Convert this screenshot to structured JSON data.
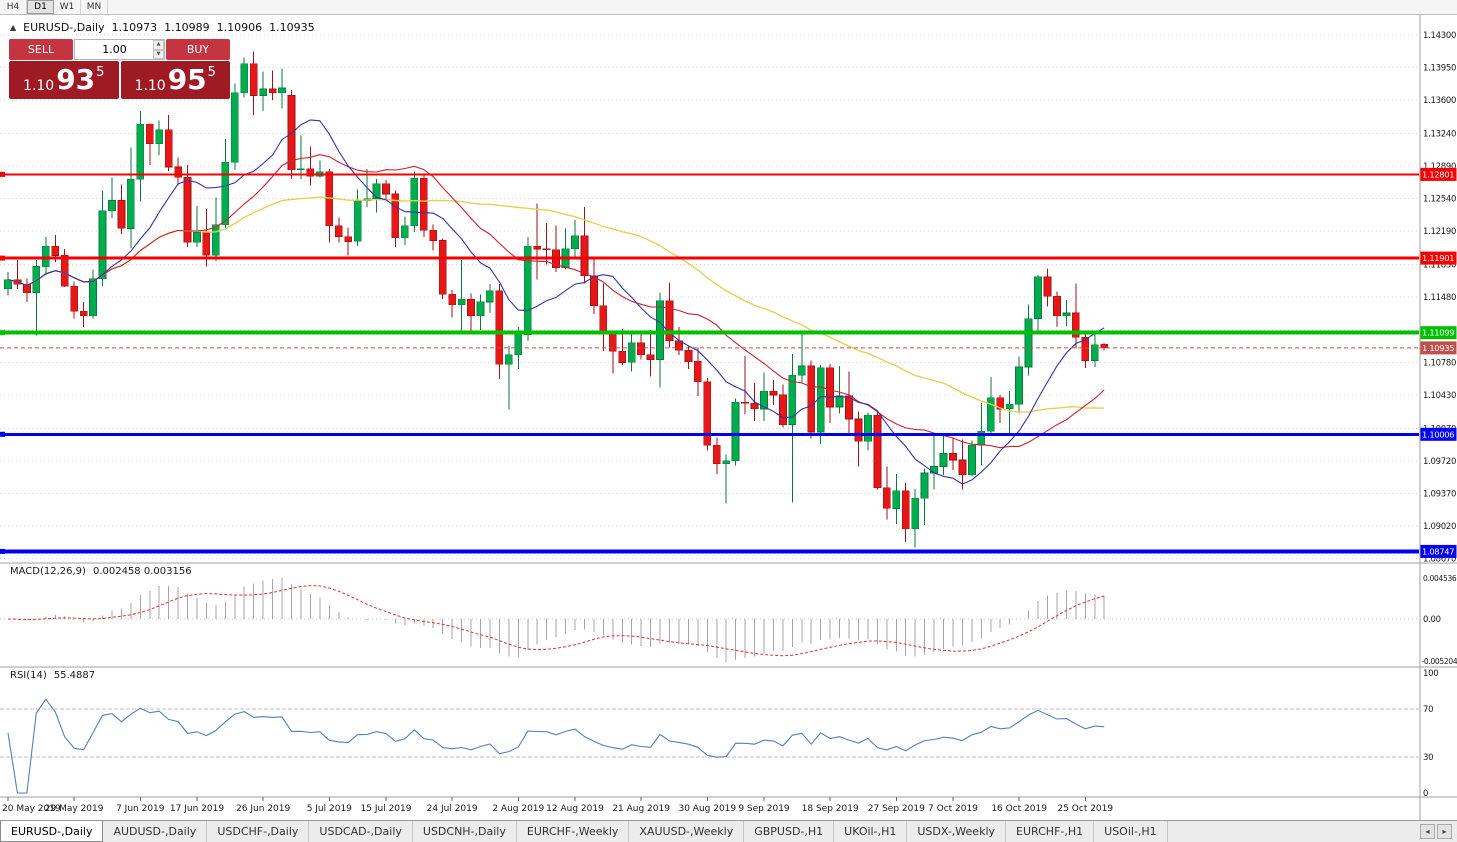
{
  "window": {
    "timeframes": [
      {
        "label": "H4",
        "active": false
      },
      {
        "label": "D1",
        "active": true
      },
      {
        "label": "W1",
        "active": false
      },
      {
        "label": "MN",
        "active": false
      }
    ]
  },
  "chart_header": {
    "collapse_marker": "▲",
    "symbol_title": "EURUSD-,Daily",
    "open": "1.10973",
    "high": "1.10989",
    "low": "1.10906",
    "close": "1.10935"
  },
  "trade_widget": {
    "sell_label": "SELL",
    "buy_label": "BUY",
    "volume": "1.00",
    "sell_price": {
      "prefix": "1.10",
      "pips": "93",
      "point": "5"
    },
    "buy_price": {
      "prefix": "1.10",
      "pips": "95",
      "point": "5"
    },
    "button_color": "#c53441",
    "panel_color": "#9e1b24"
  },
  "price_scale": {
    "ticks": [
      "1.14300",
      "1.13950",
      "1.13600",
      "1.13240",
      "1.12890",
      "1.12540",
      "1.12190",
      "1.11830",
      "1.11480",
      "1.11130",
      "1.10780",
      "1.10430",
      "1.10070",
      "1.09720",
      "1.09370",
      "1.09020",
      "1.08670"
    ]
  },
  "hlines": [
    {
      "price": 1.12801,
      "label": "1.12801",
      "color": "#f40000",
      "width": 2
    },
    {
      "price": 1.11901,
      "label": "1.11901",
      "color": "#f40000",
      "width": 3
    },
    {
      "price": 1.11099,
      "label": "1.11099",
      "color": "#00c000",
      "width": 4
    },
    {
      "price": 1.10006,
      "label": "1.10006",
      "color": "#0000f0",
      "width": 3
    },
    {
      "price": 1.08747,
      "label": "1.08747",
      "color": "#0000f0",
      "width": 4
    }
  ],
  "current_price": {
    "value": 1.10935,
    "label": "1.10935",
    "color": "#c0504d"
  },
  "macd_panel": {
    "label": "MACD(12,26,9)",
    "values": "0.002458 0.003156",
    "scale_top": "0.004536",
    "scale_mid": "0.00",
    "scale_bottom": "-0.005204",
    "histogram_color": "#a6a6a6",
    "signal_color": "#e03030"
  },
  "rsi_panel": {
    "label": "RSI(14)",
    "value": "55.4887",
    "scale": [
      "100",
      "70",
      "30",
      "0"
    ],
    "upper_level": 70,
    "lower_level": 30,
    "line_color": "#4f81bd",
    "level_color": "#c0c0c0"
  },
  "date_axis": {
    "labels": [
      {
        "text": "20 May 2019",
        "index": 0
      },
      {
        "text": "29 May 2019",
        "index": 7
      },
      {
        "text": "7 Jun 2019",
        "index": 14
      },
      {
        "text": "17 Jun 2019",
        "index": 20
      },
      {
        "text": "26 Jun 2019",
        "index": 27
      },
      {
        "text": "5 Jul 2019",
        "index": 34
      },
      {
        "text": "15 Jul 2019",
        "index": 40
      },
      {
        "text": "24 Jul 2019",
        "index": 47
      },
      {
        "text": "2 Aug 2019",
        "index": 54
      },
      {
        "text": "12 Aug 2019",
        "index": 60
      },
      {
        "text": "21 Aug 2019",
        "index": 67
      },
      {
        "text": "30 Aug 2019",
        "index": 74
      },
      {
        "text": "9 Sep 2019",
        "index": 80
      },
      {
        "text": "18 Sep 2019",
        "index": 87
      },
      {
        "text": "27 Sep 2019",
        "index": 94
      },
      {
        "text": "7 Oct 2019",
        "index": 100
      },
      {
        "text": "16 Oct 2019",
        "index": 107
      },
      {
        "text": "25 Oct 2019",
        "index": 114
      }
    ]
  },
  "tabs": {
    "items": [
      {
        "label": "EURUSD-,Daily",
        "active": true
      },
      {
        "label": "AUDUSD-,Daily",
        "active": false
      },
      {
        "label": "USDCHF-,Daily",
        "active": false
      },
      {
        "label": "USDCAD-,Daily",
        "active": false
      },
      {
        "label": "USDCNH-,Daily",
        "active": false
      },
      {
        "label": "EURCHF-,Weekly",
        "active": false
      },
      {
        "label": "XAUUSD-,Weekly",
        "active": false
      },
      {
        "label": "GBPUSD-,H1",
        "active": false
      },
      {
        "label": "UKOil-,H1",
        "active": false
      },
      {
        "label": "USDX-,Weekly",
        "active": false
      },
      {
        "label": "EURCHF-,H1",
        "active": false
      },
      {
        "label": "USOil-,H1",
        "active": false
      }
    ],
    "scroll_left": "◂",
    "scroll_right": "▸"
  },
  "chart_data": {
    "type": "candlestick",
    "symbol": "EURUSD",
    "timeframe": "Daily",
    "bull_color": "#00ad4e",
    "bear_color": "#e81717",
    "bull_dark": "#0a7a3c",
    "bear_dark": "#a01218",
    "ma_fast_color": "#3333aa",
    "ma_mid_color": "#cc2233",
    "ma_slow_color": "#e8cf52",
    "price_range": {
      "top": 1.14515,
      "bottom": 1.08622
    },
    "candles": [
      [
        "05.20",
        1.1157,
        1.1175,
        1.115,
        1.1167
      ],
      [
        "05.21",
        1.1167,
        1.1188,
        1.1157,
        1.1162
      ],
      [
        "05.22",
        1.1162,
        1.1168,
        1.1143,
        1.1153
      ],
      [
        "05.23",
        1.1153,
        1.1188,
        1.1107,
        1.1181
      ],
      [
        "05.24",
        1.1181,
        1.1213,
        1.1172,
        1.1203
      ],
      [
        "05.27",
        1.1203,
        1.1215,
        1.1186,
        1.1193
      ],
      [
        "05.28",
        1.1193,
        1.12,
        1.1159,
        1.116
      ],
      [
        "05.29",
        1.116,
        1.1165,
        1.1125,
        1.1133
      ],
      [
        "05.30",
        1.1133,
        1.1143,
        1.1116,
        1.1128
      ],
      [
        "05.31",
        1.1128,
        1.1178,
        1.1125,
        1.1168
      ],
      [
        "06.03",
        1.1168,
        1.1263,
        1.116,
        1.1241
      ],
      [
        "06.04",
        1.1241,
        1.1277,
        1.1233,
        1.1252
      ],
      [
        "06.05",
        1.1252,
        1.1269,
        1.1216,
        1.1222
      ],
      [
        "06.06",
        1.1222,
        1.1309,
        1.1201,
        1.1275
      ],
      [
        "06.07",
        1.1275,
        1.1348,
        1.1251,
        1.1334
      ],
      [
        "06.10",
        1.1334,
        1.1335,
        1.129,
        1.1313
      ],
      [
        "06.11",
        1.1313,
        1.1338,
        1.1301,
        1.1328
      ],
      [
        "06.12",
        1.1328,
        1.1344,
        1.1284,
        1.1288
      ],
      [
        "06.13",
        1.1288,
        1.1298,
        1.1268,
        1.1277
      ],
      [
        "06.14",
        1.1277,
        1.129,
        1.1202,
        1.1207
      ],
      [
        "06.17",
        1.1207,
        1.1246,
        1.1202,
        1.1218
      ],
      [
        "06.18",
        1.1218,
        1.1243,
        1.1181,
        1.1193
      ],
      [
        "06.19",
        1.1193,
        1.1255,
        1.1187,
        1.1226
      ],
      [
        "06.20",
        1.1226,
        1.1318,
        1.1222,
        1.1293
      ],
      [
        "06.21",
        1.1293,
        1.1378,
        1.1285,
        1.1368
      ],
      [
        "06.24",
        1.1368,
        1.1406,
        1.1363,
        1.1399
      ],
      [
        "06.25",
        1.1399,
        1.1412,
        1.1344,
        1.1365
      ],
      [
        "06.26",
        1.1365,
        1.1391,
        1.1348,
        1.1372
      ],
      [
        "06.27",
        1.1372,
        1.1392,
        1.136,
        1.1368
      ],
      [
        "06.28",
        1.1368,
        1.1394,
        1.1351,
        1.1373
      ],
      [
        "07.01",
        1.1365,
        1.1371,
        1.1275,
        1.1285
      ],
      [
        "07.02",
        1.1285,
        1.1322,
        1.1275,
        1.1286
      ],
      [
        "07.03",
        1.1286,
        1.131,
        1.1268,
        1.1278
      ],
      [
        "07.04",
        1.1278,
        1.1295,
        1.1277,
        1.1283
      ],
      [
        "07.05",
        1.1283,
        1.1286,
        1.1207,
        1.1225
      ],
      [
        "07.08",
        1.1225,
        1.1234,
        1.1207,
        1.1213
      ],
      [
        "07.09",
        1.1213,
        1.1223,
        1.1193,
        1.1208
      ],
      [
        "07.10",
        1.1208,
        1.1264,
        1.1203,
        1.1252
      ],
      [
        "07.11",
        1.1252,
        1.1286,
        1.1245,
        1.1254
      ],
      [
        "07.12",
        1.1254,
        1.1275,
        1.1239,
        1.127
      ],
      [
        "07.15",
        1.127,
        1.1274,
        1.1253,
        1.1259
      ],
      [
        "07.16",
        1.1259,
        1.1263,
        1.1202,
        1.1212
      ],
      [
        "07.17",
        1.1212,
        1.1235,
        1.1204,
        1.1225
      ],
      [
        "07.18",
        1.1225,
        1.1283,
        1.1218,
        1.1276
      ],
      [
        "07.19",
        1.1276,
        1.1281,
        1.1213,
        1.122
      ],
      [
        "07.22",
        1.122,
        1.1226,
        1.1198,
        1.1209
      ],
      [
        "07.23",
        1.1209,
        1.1211,
        1.1146,
        1.1151
      ],
      [
        "07.24",
        1.1151,
        1.1156,
        1.1126,
        1.114
      ],
      [
        "07.25",
        1.114,
        1.1188,
        1.1112,
        1.1146
      ],
      [
        "07.26",
        1.1146,
        1.1152,
        1.1112,
        1.1128
      ],
      [
        "07.29",
        1.1128,
        1.1151,
        1.1113,
        1.1143
      ],
      [
        "07.30",
        1.1143,
        1.1162,
        1.1131,
        1.1155
      ],
      [
        "07.31",
        1.1155,
        1.1162,
        1.106,
        1.1076
      ],
      [
        "08.01",
        1.1076,
        1.1096,
        1.1027,
        1.1086
      ],
      [
        "08.02",
        1.1086,
        1.1116,
        1.1071,
        1.1108
      ],
      [
        "08.05",
        1.1108,
        1.1213,
        1.1101,
        1.1203
      ],
      [
        "08.06",
        1.1203,
        1.1249,
        1.1167,
        1.12
      ],
      [
        "08.07",
        1.12,
        1.1228,
        1.1183,
        1.1199
      ],
      [
        "08.08",
        1.1199,
        1.1225,
        1.1175,
        1.118
      ],
      [
        "08.09",
        1.118,
        1.1222,
        1.1178,
        1.12
      ],
      [
        "08.12",
        1.12,
        1.1231,
        1.1189,
        1.1214
      ],
      [
        "08.13",
        1.1214,
        1.1245,
        1.1163,
        1.1171
      ],
      [
        "08.14",
        1.1171,
        1.1192,
        1.113,
        1.1139
      ],
      [
        "08.15",
        1.1139,
        1.1163,
        1.109,
        1.1108
      ],
      [
        "08.16",
        1.1108,
        1.1111,
        1.1066,
        1.109
      ],
      [
        "08.19",
        1.109,
        1.1114,
        1.1075,
        1.1078
      ],
      [
        "08.20",
        1.1078,
        1.1108,
        1.1068,
        1.1099
      ],
      [
        "08.21",
        1.1099,
        1.1108,
        1.1081,
        1.1086
      ],
      [
        "08.22",
        1.1086,
        1.1113,
        1.1063,
        1.1081
      ],
      [
        "08.23",
        1.1081,
        1.1153,
        1.1051,
        1.1144
      ],
      [
        "08.26",
        1.1144,
        1.1164,
        1.1094,
        1.1101
      ],
      [
        "08.27",
        1.1101,
        1.1116,
        1.1086,
        1.1091
      ],
      [
        "08.28",
        1.1091,
        1.1095,
        1.1071,
        1.1079
      ],
      [
        "08.29",
        1.1079,
        1.1094,
        1.1042,
        1.1057
      ],
      [
        "08.30",
        1.1057,
        1.1061,
        1.0983,
        1.0989
      ],
      [
        "09.02",
        1.0989,
        1.0997,
        1.0958,
        1.0969
      ],
      [
        "09.03",
        1.0969,
        1.0979,
        1.0926,
        1.0972
      ],
      [
        "09.04",
        1.0972,
        1.1039,
        1.0967,
        1.1035
      ],
      [
        "09.05",
        1.1035,
        1.1085,
        1.1022,
        1.1034
      ],
      [
        "09.06",
        1.1034,
        1.1056,
        1.1015,
        1.1028
      ],
      [
        "09.09",
        1.1028,
        1.1067,
        1.1015,
        1.1047
      ],
      [
        "09.10",
        1.1047,
        1.1059,
        1.1032,
        1.1043
      ],
      [
        "09.11",
        1.1043,
        1.1054,
        1.1008,
        1.1011
      ],
      [
        "09.12",
        1.1011,
        1.1087,
        1.0927,
        1.1064
      ],
      [
        "09.13",
        1.1064,
        1.111,
        1.1056,
        1.1074
      ],
      [
        "09.16",
        1.1074,
        1.108,
        1.0996,
        1.1003
      ],
      [
        "09.17",
        1.1003,
        1.1075,
        1.099,
        1.1072
      ],
      [
        "09.18",
        1.1072,
        1.1076,
        1.1013,
        1.103
      ],
      [
        "09.19",
        1.103,
        1.1074,
        1.1023,
        1.1042
      ],
      [
        "09.20",
        1.1042,
        1.1068,
        1.1002,
        1.1017
      ],
      [
        "09.23",
        1.1017,
        1.1025,
        1.0966,
        1.0993
      ],
      [
        "09.24",
        1.0993,
        1.1024,
        1.0983,
        1.1021
      ],
      [
        "09.25",
        1.1021,
        1.1024,
        1.0941,
        1.0943
      ],
      [
        "09.26",
        1.0943,
        1.0966,
        1.0909,
        1.0921
      ],
      [
        "09.27",
        1.0921,
        1.0958,
        1.0904,
        1.094
      ],
      [
        "09.30",
        1.094,
        1.0948,
        1.0885,
        1.0899
      ],
      [
        "10.01",
        1.0899,
        1.0942,
        1.0879,
        1.0932
      ],
      [
        "10.02",
        1.0932,
        1.0964,
        1.0903,
        1.0959
      ],
      [
        "10.03",
        1.0959,
        1.0999,
        1.0941,
        1.0966
      ],
      [
        "10.04",
        1.0966,
        1.0999,
        1.0957,
        1.098
      ],
      [
        "10.07",
        1.098,
        1.0996,
        1.0962,
        1.0973
      ],
      [
        "10.08",
        1.0973,
        1.0995,
        1.0941,
        1.0957
      ],
      [
        "10.09",
        1.0957,
        1.0994,
        1.0955,
        1.0989
      ],
      [
        "10.10",
        1.0989,
        1.1034,
        1.0967,
        1.1004
      ],
      [
        "10.11",
        1.1004,
        1.1062,
        1.1002,
        1.104
      ],
      [
        "10.14",
        1.104,
        1.1043,
        1.1013,
        1.1028
      ],
      [
        "10.15",
        1.1028,
        1.1047,
        1.1001,
        1.1033
      ],
      [
        "10.16",
        1.1033,
        1.1084,
        1.1023,
        1.1073
      ],
      [
        "10.17",
        1.1073,
        1.114,
        1.1064,
        1.1125
      ],
      [
        "10.18",
        1.1125,
        1.1172,
        1.1111,
        1.117
      ],
      [
        "10.21",
        1.117,
        1.1179,
        1.1138,
        1.1149
      ],
      [
        "10.22",
        1.1149,
        1.1154,
        1.1116,
        1.1128
      ],
      [
        "10.23",
        1.1128,
        1.1145,
        1.1117,
        1.1131
      ],
      [
        "10.24",
        1.1131,
        1.1163,
        1.1093,
        1.1105
      ],
      [
        "10.25",
        1.1105,
        1.111,
        1.1072,
        1.108
      ],
      [
        "10.28",
        1.108,
        1.1108,
        1.1073,
        1.1097
      ],
      [
        "10.29",
        1.10973,
        1.10989,
        1.10906,
        1.10935
      ]
    ]
  }
}
